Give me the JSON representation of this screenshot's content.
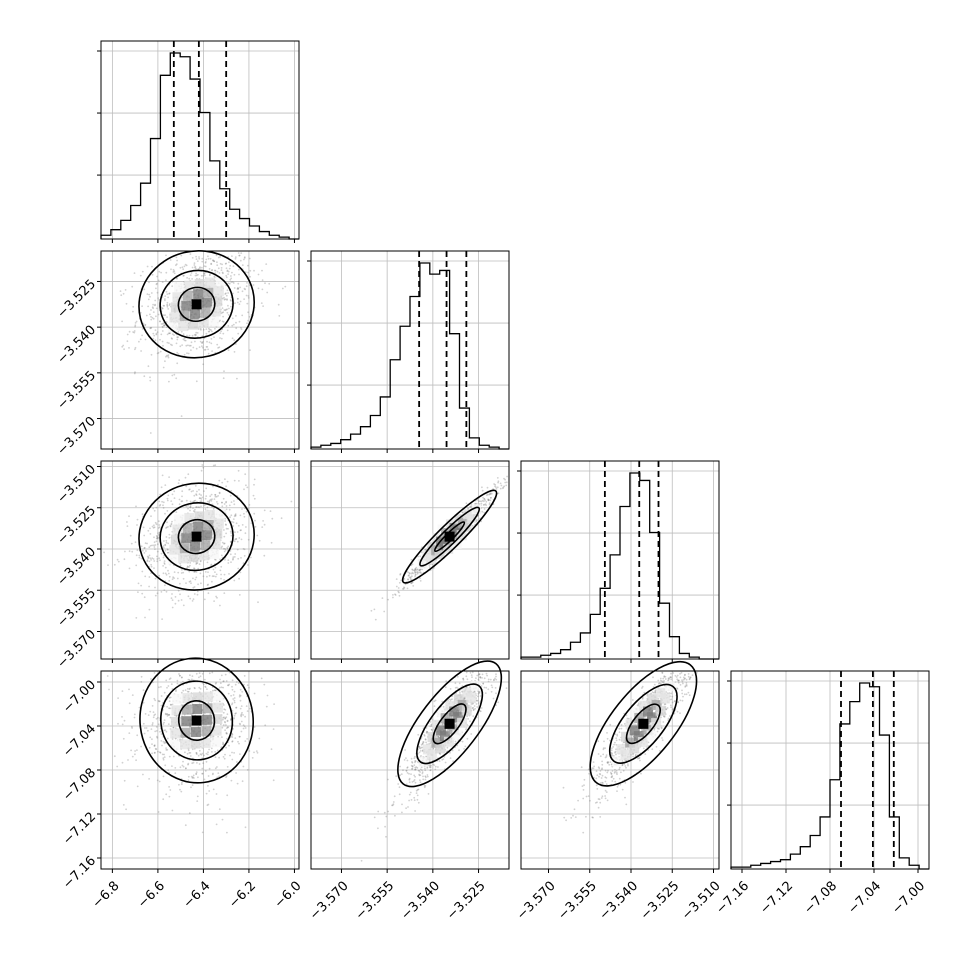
{
  "chart_data": {
    "type": "corner",
    "grid": true,
    "parameters": [
      {
        "range": [
          -6.85,
          -5.98
        ],
        "ticks": [
          -6.8,
          -6.6,
          -6.4,
          -6.2,
          -6.0
        ],
        "tick_labels": [
          "−6.8",
          "−6.6",
          "−6.4",
          "−6.2",
          "−6.0"
        ]
      },
      {
        "range": [
          -3.58,
          -3.515
        ],
        "ticks": [
          -3.57,
          -3.555,
          -3.54,
          -3.525
        ],
        "tick_labels": [
          "−3.570",
          "−3.555",
          "−3.540",
          "−3.525"
        ]
      },
      {
        "range": [
          -3.58,
          -3.508
        ],
        "ticks": [
          -3.57,
          -3.555,
          -3.54,
          -3.525,
          -3.51
        ],
        "tick_labels": [
          "−3.570",
          "−3.555",
          "−3.540",
          "−3.525",
          "−3.510"
        ]
      },
      {
        "range": [
          -7.17,
          -6.99
        ],
        "ticks": [
          -7.16,
          -7.12,
          -7.08,
          -7.04,
          -7.0
        ],
        "tick_labels": [
          "−7.16",
          "−7.12",
          "−7.08",
          "−7.04",
          "−7.00"
        ]
      }
    ],
    "histograms": [
      {
        "param": 0,
        "counts": [
          2,
          5,
          10,
          18,
          30,
          54,
          88,
          100,
          98,
          86,
          68,
          42,
          27,
          16,
          11,
          7,
          4,
          2,
          1,
          0
        ],
        "quantiles": [
          -6.53,
          -6.42,
          -6.3
        ]
      },
      {
        "param": 1,
        "counts": [
          1,
          2,
          3,
          5,
          8,
          12,
          18,
          28,
          48,
          66,
          82,
          100,
          94,
          96,
          62,
          22,
          6,
          2,
          1,
          0
        ],
        "quantiles": [
          -3.5445,
          -3.5355,
          -3.529
        ]
      },
      {
        "param": 2,
        "counts": [
          1,
          1,
          2,
          3,
          5,
          9,
          14,
          24,
          38,
          56,
          82,
          100,
          96,
          68,
          30,
          12,
          3,
          1,
          0,
          0
        ],
        "quantiles": [
          -3.5495,
          -3.537,
          -3.53
        ]
      },
      {
        "param": 3,
        "counts": [
          1,
          1,
          2,
          3,
          4,
          5,
          8,
          12,
          18,
          28,
          48,
          78,
          90,
          100,
          98,
          72,
          28,
          6,
          2,
          0
        ],
        "quantiles": [
          -7.07,
          -7.041,
          -7.022
        ]
      }
    ],
    "pairs": [
      {
        "x": 0,
        "y": 1,
        "center": [
          -6.43,
          -3.5325
        ],
        "sd": [
          0.13,
          0.0095
        ],
        "rho": 0.25
      },
      {
        "x": 0,
        "y": 2,
        "center": [
          -6.43,
          -3.5355
        ],
        "sd": [
          0.13,
          0.0105
        ],
        "rho": 0.25
      },
      {
        "x": 1,
        "y": 2,
        "center": [
          -3.5345,
          -3.5355
        ],
        "sd": [
          0.008,
          0.009
        ],
        "rho": 0.97
      },
      {
        "x": 0,
        "y": 3,
        "center": [
          -6.43,
          -7.035
        ],
        "sd": [
          0.13,
          0.03
        ],
        "rho": 0.1
      },
      {
        "x": 1,
        "y": 3,
        "center": [
          -3.5345,
          -7.038
        ],
        "sd": [
          0.008,
          0.032
        ],
        "rho": 0.9
      },
      {
        "x": 2,
        "y": 3,
        "center": [
          -3.5355,
          -7.038
        ],
        "sd": [
          0.009,
          0.032
        ],
        "rho": 0.88
      }
    ]
  }
}
